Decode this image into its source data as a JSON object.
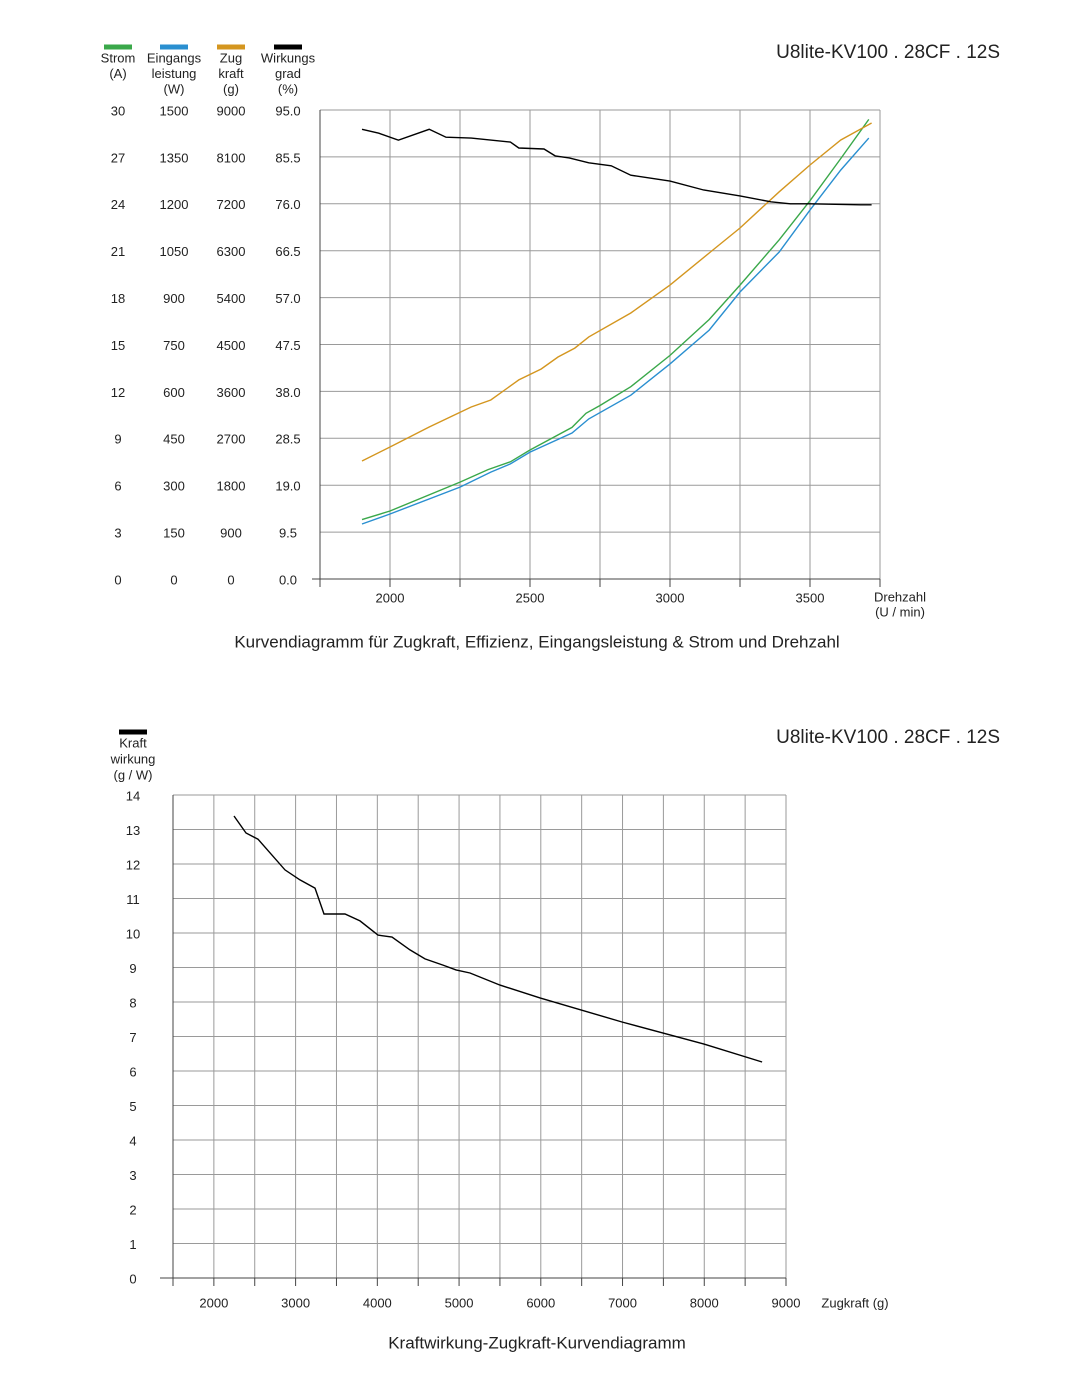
{
  "chart_data": [
    {
      "type": "line",
      "title": "U8lite-KV100 . 28CF . 12S",
      "caption": "Kurvendiagramm für Zugkraft, Effizienz, Eingangsleistung &  Strom und Drehzahl",
      "xlabel": [
        "Drehzahl",
        "(U / min)"
      ],
      "xlim": [
        1750,
        3750
      ],
      "xticks": [
        2000,
        2500,
        3000,
        3500
      ],
      "minor_xticks": [
        1750,
        2250,
        2750,
        3250,
        3750
      ],
      "grid": true,
      "series": [
        {
          "name": [
            "Strom"
          ],
          "unit": "(A)",
          "color": "#3aa84a",
          "ylim": [
            0,
            30
          ],
          "yticks": [
            0,
            3,
            6,
            9,
            12,
            15,
            18,
            21,
            24,
            27,
            30
          ],
          "x": [
            1900,
            2000,
            2250,
            2350,
            2430,
            2500,
            2650,
            2700,
            2750,
            2860,
            3000,
            3140,
            3250,
            3390,
            3500,
            3610,
            3710
          ],
          "values": [
            3.8,
            4.35,
            6.2,
            7.0,
            7.5,
            8.25,
            9.7,
            10.6,
            11.1,
            12.3,
            14.3,
            16.6,
            18.8,
            21.7,
            24.2,
            26.9,
            29.4
          ]
        },
        {
          "name": [
            "Eingangs",
            "leistung"
          ],
          "unit": "(W)",
          "color": "#2a8fd0",
          "ylim": [
            0,
            1500
          ],
          "yticks": [
            0,
            150,
            300,
            450,
            600,
            750,
            900,
            1050,
            1200,
            1350,
            1500
          ],
          "x": [
            1900,
            2000,
            2250,
            2360,
            2430,
            2500,
            2650,
            2710,
            2860,
            3000,
            3140,
            3250,
            3390,
            3500,
            3610,
            3710
          ],
          "values": [
            176,
            208,
            294,
            342,
            368,
            406,
            467,
            512,
            588,
            688,
            796,
            918,
            1046,
            1180,
            1308,
            1410
          ]
        },
        {
          "name": [
            "Zug",
            "kraft"
          ],
          "unit": "(g)",
          "color": "#d4961f",
          "ylim": [
            0,
            9000
          ],
          "yticks": [
            0,
            900,
            1800,
            2700,
            3600,
            4500,
            5400,
            6300,
            7200,
            8100,
            9000
          ],
          "x": [
            1900,
            2000,
            2140,
            2290,
            2360,
            2460,
            2540,
            2600,
            2660,
            2710,
            2860,
            3000,
            3140,
            3250,
            3390,
            3500,
            3610,
            3720
          ],
          "values": [
            2265,
            2533,
            2917,
            3300,
            3435,
            3820,
            4030,
            4260,
            4430,
            4645,
            5105,
            5640,
            6255,
            6735,
            7430,
            7945,
            8425,
            8750
          ]
        },
        {
          "name": [
            "Wirkungs",
            "grad"
          ],
          "unit": "(%)",
          "color": "#000000",
          "ylim": [
            0,
            95
          ],
          "yticks": [
            {
              "value": 0,
              "label": "0.0"
            },
            9.5,
            {
              "value": 19,
              "label": "19.0"
            },
            28.5,
            {
              "value": 38,
              "label": "38.0"
            },
            47.5,
            {
              "value": 57,
              "label": "57.0"
            },
            66.5,
            {
              "value": 76,
              "label": "76.0"
            },
            85.5,
            {
              "value": 95,
              "label": "95.0"
            }
          ],
          "x": [
            1900,
            1960,
            2030,
            2140,
            2200,
            2290,
            2430,
            2460,
            2550,
            2590,
            2640,
            2710,
            2790,
            2860,
            3000,
            3120,
            3250,
            3360,
            3430,
            3500,
            3680,
            3720
          ],
          "values": [
            91.1,
            90.3,
            88.9,
            91.1,
            89.5,
            89.3,
            88.5,
            87.3,
            87.1,
            85.7,
            85.3,
            84.3,
            83.7,
            81.8,
            80.6,
            78.8,
            77.6,
            76.4,
            76.0,
            76.0,
            75.8,
            75.8
          ]
        }
      ]
    },
    {
      "type": "line",
      "title": "U8lite-KV100 . 28CF . 12S",
      "caption": "Kraftwirkung-Zugkraft-Kurvendiagramm",
      "xlabel": [
        "Zugkraft (g)"
      ],
      "xlim": [
        1500,
        9000
      ],
      "xticks": [
        2000,
        3000,
        4000,
        5000,
        6000,
        7000,
        8000,
        9000
      ],
      "minor_xticks": [
        1500,
        2500,
        3500,
        4500,
        5500,
        6500,
        7500,
        8500
      ],
      "grid": true,
      "series": [
        {
          "name": [
            "Kraft",
            "wirkung"
          ],
          "unit": "(g / W)",
          "color": "#000000",
          "ylim": [
            0,
            14
          ],
          "yticks": [
            0,
            1,
            2,
            3,
            4,
            5,
            6,
            7,
            8,
            9,
            10,
            11,
            12,
            13,
            14
          ],
          "x": [
            2246,
            2393,
            2540,
            2870,
            3054,
            3237,
            3347,
            3604,
            3788,
            4008,
            4180,
            4400,
            4583,
            4803,
            4963,
            5134,
            5501,
            5990,
            6994,
            7997,
            8707
          ],
          "values": [
            13.39,
            12.9,
            12.72,
            11.83,
            11.54,
            11.3,
            10.55,
            10.55,
            10.35,
            9.94,
            9.88,
            9.51,
            9.25,
            9.07,
            8.93,
            8.84,
            8.49,
            8.12,
            7.42,
            6.78,
            6.26
          ]
        }
      ]
    }
  ]
}
